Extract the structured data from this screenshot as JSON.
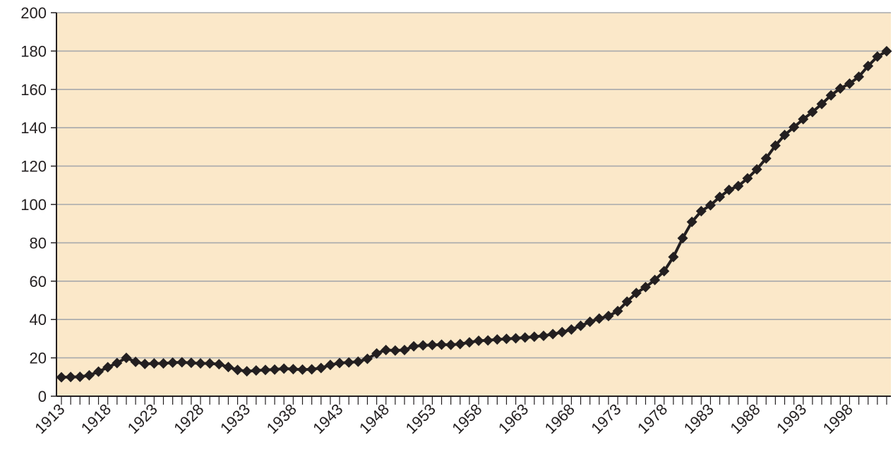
{
  "chart_data": {
    "type": "line",
    "title": "",
    "xlabel": "",
    "ylabel": "",
    "x": [
      1913,
      1914,
      1915,
      1916,
      1917,
      1918,
      1919,
      1920,
      1921,
      1922,
      1923,
      1924,
      1925,
      1926,
      1927,
      1928,
      1929,
      1930,
      1931,
      1932,
      1933,
      1934,
      1935,
      1936,
      1937,
      1938,
      1939,
      1940,
      1941,
      1942,
      1943,
      1944,
      1945,
      1946,
      1947,
      1948,
      1949,
      1950,
      1951,
      1952,
      1953,
      1954,
      1955,
      1956,
      1957,
      1958,
      1959,
      1960,
      1961,
      1962,
      1963,
      1964,
      1965,
      1966,
      1967,
      1968,
      1969,
      1970,
      1971,
      1972,
      1973,
      1974,
      1975,
      1976,
      1977,
      1978,
      1979,
      1980,
      1981,
      1982,
      1983,
      1984,
      1985,
      1986,
      1987,
      1988,
      1989,
      1990,
      1991,
      1992,
      1993,
      1994,
      1995,
      1996,
      1997,
      1998,
      1999,
      2000,
      2001,
      2002
    ],
    "series": [
      {
        "values": [
          9.9,
          10.0,
          10.1,
          10.9,
          12.8,
          15.1,
          17.3,
          20.0,
          17.9,
          16.8,
          17.1,
          17.1,
          17.5,
          17.7,
          17.4,
          17.1,
          17.1,
          16.7,
          15.2,
          13.7,
          13.0,
          13.4,
          13.7,
          13.9,
          14.4,
          14.1,
          13.9,
          14.0,
          14.7,
          16.3,
          17.3,
          17.6,
          18.0,
          19.5,
          22.3,
          24.1,
          23.8,
          24.1,
          26.0,
          26.5,
          26.7,
          26.9,
          26.8,
          27.2,
          28.1,
          28.9,
          29.1,
          29.6,
          29.9,
          30.2,
          30.6,
          31.0,
          31.5,
          32.4,
          33.4,
          34.8,
          36.7,
          38.8,
          40.5,
          41.8,
          44.4,
          49.3,
          53.8,
          56.9,
          60.6,
          65.2,
          72.6,
          82.4,
          90.9,
          96.5,
          99.6,
          103.9,
          107.6,
          109.6,
          113.6,
          118.3,
          124.0,
          130.7,
          136.2,
          140.3,
          144.5,
          148.2,
          152.4,
          156.9,
          160.5,
          163.0,
          166.6,
          172.2,
          177.1,
          179.9
        ]
      }
    ],
    "ylim": [
      0,
      200
    ],
    "yticks": [
      0,
      20,
      40,
      60,
      80,
      100,
      120,
      140,
      160,
      180,
      200
    ],
    "xtick_labels": [
      "1913",
      "1918",
      "1923",
      "1928",
      "1933",
      "1938",
      "1943",
      "1948",
      "1953",
      "1958",
      "1963",
      "1968",
      "1973",
      "1978",
      "1983",
      "1988",
      "1993",
      "1998"
    ],
    "grid": true,
    "legend": "none",
    "colors": {
      "plot_background": "#fbe8c9",
      "line": "#231f20",
      "grid": "#a7a9ac",
      "axis": "#231f20"
    },
    "marker": "diamond"
  }
}
